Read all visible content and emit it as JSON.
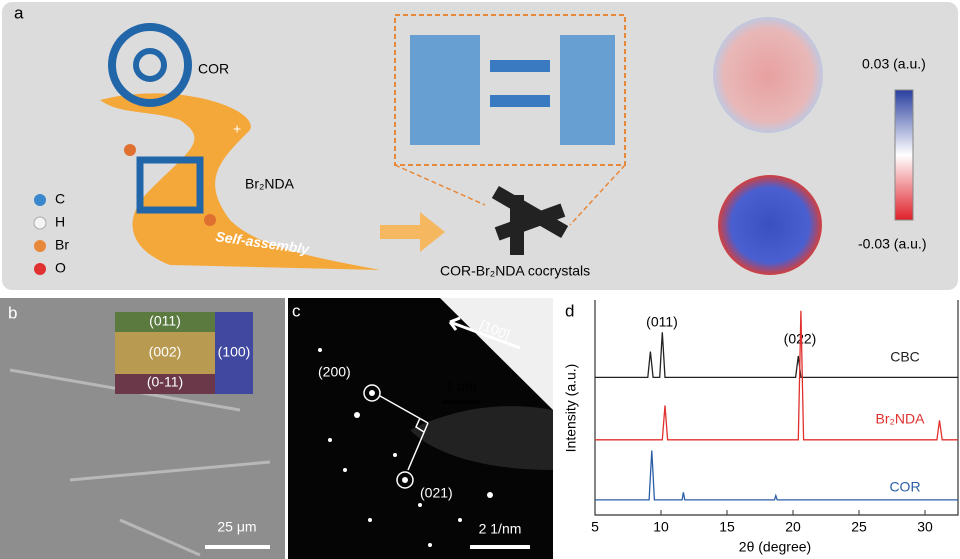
{
  "panel_a": {
    "label": "a",
    "molecule_1": "COR",
    "molecule_2": "Br₂NDA",
    "legend": [
      "C",
      "H",
      "Br",
      "O"
    ],
    "process": "Self-assembly",
    "product": "COR-Br₂NDA cocrystals",
    "scale_max": "0.03 (a.u.)",
    "scale_min": "-0.03 (a.u.)"
  },
  "panel_b": {
    "label": "b",
    "faces": [
      "(011)",
      "(002)",
      "(100)",
      "(0-11)"
    ],
    "scale_bar": "25 μm"
  },
  "panel_c": {
    "label": "c",
    "direction": "[100]",
    "inset_scale_bar": "1 μm",
    "spots": [
      "(200)",
      "(021)"
    ],
    "scale_bar": "2 1/nm"
  },
  "chart_data": {
    "type": "line",
    "label": "d",
    "xlabel": "2θ (degree)",
    "ylabel": "Intensity (a.u.)",
    "xlim": [
      5,
      32.5
    ],
    "xticks": [
      5,
      10,
      15,
      20,
      25,
      30
    ],
    "ylim": [
      0,
      100
    ],
    "annotations": [
      "(011)",
      "(022)"
    ],
    "series": [
      {
        "name": "CBC",
        "color": "#222222",
        "x": [
          5,
          9.0,
          9.2,
          9.4,
          9.9,
          10.1,
          10.3,
          20.2,
          20.4,
          20.6,
          32.5
        ],
        "values": [
          64,
          64,
          76,
          64,
          64,
          85,
          64,
          64,
          74,
          64,
          64
        ]
      },
      {
        "name": "Br₂NDA",
        "color": "#e0302e",
        "x": [
          5,
          10.1,
          10.3,
          10.5,
          20.4,
          20.6,
          20.8,
          30.9,
          31.1,
          31.3,
          32.5
        ],
        "values": [
          35,
          35,
          51,
          35,
          35,
          95,
          35,
          35,
          44,
          35,
          35
        ]
      },
      {
        "name": "COR",
        "color": "#2b5ea7",
        "x": [
          5,
          9.1,
          9.3,
          9.5,
          11.6,
          11.7,
          11.8,
          18.6,
          18.7,
          18.8,
          32.5
        ],
        "values": [
          7,
          7,
          30,
          7,
          7,
          10.5,
          7,
          7,
          9,
          7,
          7
        ]
      }
    ]
  }
}
